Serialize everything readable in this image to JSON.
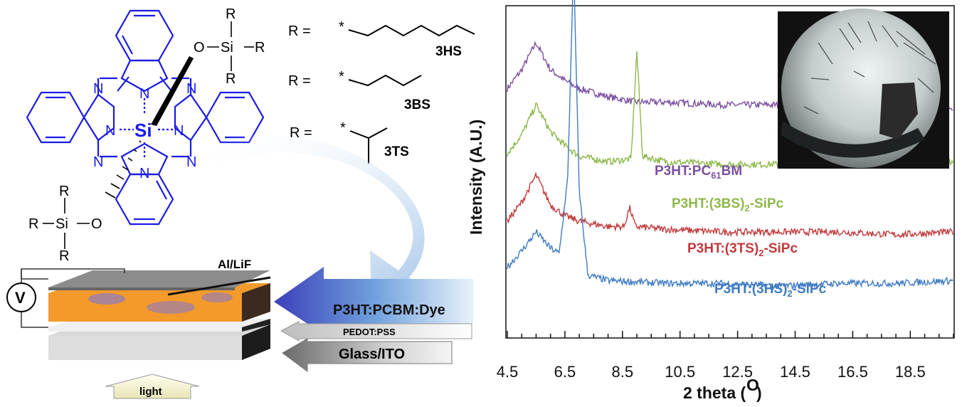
{
  "colors": {
    "ring_blue": "#1a1ae6",
    "purple": "#7b4fa0",
    "green": "#8db84a",
    "red": "#c0393b",
    "blue": "#3f7ac2",
    "orange": "#f39a2c"
  },
  "left_panel": {
    "r_labels": [
      "R =",
      "R =",
      "R ="
    ],
    "r_star": "*",
    "substituents": [
      "3HS",
      "3BS",
      "3TS"
    ],
    "si_center": "Si",
    "si_axial": "Si",
    "o_label": "O",
    "r_letter": "R",
    "n_label": "N",
    "device": {
      "cathode": "Al/LiF",
      "active": "P3HT:PCBM:Dye",
      "htl": "PEDOT:PSS",
      "substrate": "Glass/ITO",
      "voltage": "V",
      "light": "light"
    }
  },
  "chart_data": {
    "type": "line",
    "xlabel": "2 theta (O)",
    "ylabel": "Intensity (A.U.)",
    "xlim": [
      4.5,
      20.0
    ],
    "x_ticks": [
      "4.5",
      "6.5",
      "8.5",
      "10.5",
      "12.5",
      "14.5",
      "16.5",
      "18.5"
    ],
    "y_tick_labels_shown": false,
    "grid": false,
    "legend": "inline labels beside each trace",
    "inset": "optical micrograph of needle-like crystals",
    "series": [
      {
        "name": "P3HT:PC61BM",
        "label_main": "P3HT:PC",
        "label_sub": "61",
        "label_tail": "BM",
        "color": "#7b4fa0",
        "x": [
          4.5,
          5.0,
          5.5,
          6.0,
          6.5,
          7.0,
          8.0,
          9.0,
          10.0,
          12.0,
          14.0,
          16.0,
          18.0,
          20.0
        ],
        "y": [
          0.83,
          0.9,
          1.0,
          0.9,
          0.86,
          0.83,
          0.8,
          0.78,
          0.78,
          0.77,
          0.77,
          0.76,
          0.76,
          0.76
        ]
      },
      {
        "name": "P3HT:(3BS)2-SiPc",
        "label_main": "P3HT:(3BS)",
        "label_sub": "2",
        "label_tail": "-SiPc",
        "color": "#8db84a",
        "x": [
          4.5,
          5.0,
          5.5,
          6.0,
          6.5,
          7.0,
          8.0,
          8.8,
          9.0,
          9.2,
          10.0,
          12.0,
          14.0,
          16.0,
          18.0,
          20.0
        ],
        "y": [
          0.59,
          0.66,
          0.77,
          0.67,
          0.62,
          0.58,
          0.56,
          0.57,
          0.97,
          0.58,
          0.56,
          0.55,
          0.55,
          0.55,
          0.55,
          0.56
        ]
      },
      {
        "name": "P3HT:(3TS)2-SiPc",
        "label_main": "P3HT:(3TS)",
        "label_sub": "2",
        "label_tail": "-SiPc",
        "color": "#c0393b",
        "x": [
          4.5,
          5.0,
          5.5,
          6.0,
          6.5,
          7.0,
          8.0,
          8.55,
          8.75,
          8.95,
          10.0,
          12.0,
          14.0,
          16.0,
          18.0,
          20.0
        ],
        "y": [
          0.34,
          0.41,
          0.51,
          0.4,
          0.36,
          0.34,
          0.32,
          0.32,
          0.39,
          0.32,
          0.31,
          0.3,
          0.3,
          0.3,
          0.29,
          0.3
        ]
      },
      {
        "name": "P3HT:(3HS)2-SiPc",
        "label_main": "P3HT:(3HS)",
        "label_sub": "2",
        "label_tail": "-SiPc",
        "color": "#3f7ac2",
        "x": [
          4.5,
          5.0,
          5.5,
          6.0,
          6.3,
          6.6,
          6.8,
          7.0,
          7.3,
          8.0,
          10.0,
          12.0,
          14.0,
          16.0,
          18.0,
          20.0
        ],
        "y": [
          0.17,
          0.23,
          0.3,
          0.24,
          0.22,
          0.5,
          1.29,
          0.45,
          0.14,
          0.12,
          0.11,
          0.11,
          0.1,
          0.11,
          0.11,
          0.12
        ]
      }
    ]
  }
}
